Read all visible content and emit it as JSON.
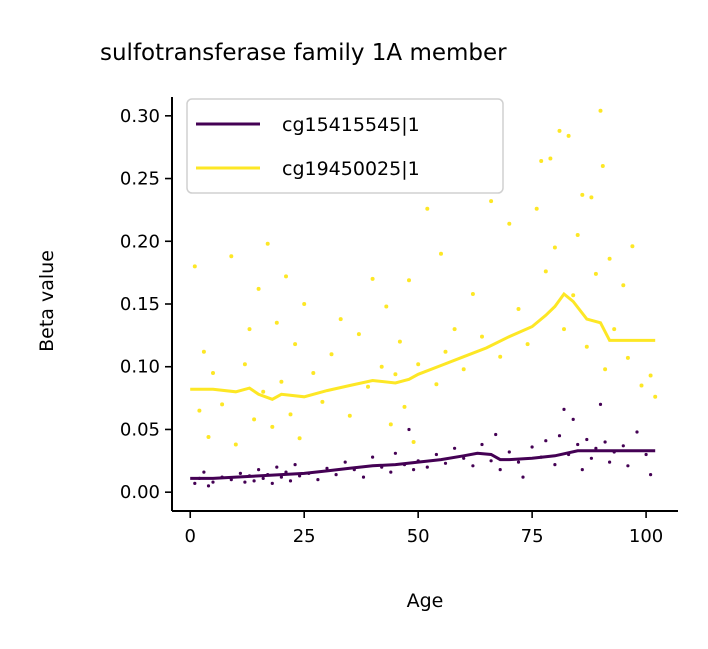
{
  "chart_data": {
    "type": "scatter",
    "title": "sulfotransferase family 1A member",
    "xlabel": "Age",
    "ylabel": "Beta value",
    "xlim": [
      -4,
      107
    ],
    "ylim": [
      -0.015,
      0.315
    ],
    "xticks": [
      0,
      25,
      50,
      75,
      100
    ],
    "yticks": [
      0.0,
      0.05,
      0.1,
      0.15,
      0.2,
      0.25,
      0.3
    ],
    "xtick_labels": [
      "0",
      "25",
      "50",
      "75",
      "100"
    ],
    "ytick_labels": [
      "0.00",
      "0.05",
      "0.10",
      "0.15",
      "0.20",
      "0.25",
      "0.30"
    ],
    "grid": false,
    "legend_position": "top-left",
    "series": [
      {
        "name": "cg15415545|1",
        "color": "#440154",
        "trend": [
          [
            0,
            0.011
          ],
          [
            5,
            0.011
          ],
          [
            10,
            0.012
          ],
          [
            15,
            0.013
          ],
          [
            20,
            0.014
          ],
          [
            25,
            0.015
          ],
          [
            30,
            0.017
          ],
          [
            35,
            0.019
          ],
          [
            40,
            0.021
          ],
          [
            45,
            0.022
          ],
          [
            50,
            0.024
          ],
          [
            55,
            0.026
          ],
          [
            60,
            0.029
          ],
          [
            63,
            0.031
          ],
          [
            66,
            0.03
          ],
          [
            68,
            0.026
          ],
          [
            70,
            0.026
          ],
          [
            75,
            0.027
          ],
          [
            80,
            0.029
          ],
          [
            85,
            0.033
          ],
          [
            90,
            0.033
          ],
          [
            95,
            0.033
          ],
          [
            102,
            0.033
          ]
        ],
        "points": [
          [
            1,
            0.007
          ],
          [
            2,
            0.011
          ],
          [
            3,
            0.016
          ],
          [
            4,
            0.005
          ],
          [
            5,
            0.008
          ],
          [
            7,
            0.012
          ],
          [
            9,
            0.01
          ],
          [
            11,
            0.015
          ],
          [
            12,
            0.008
          ],
          [
            13,
            0.013
          ],
          [
            14,
            0.009
          ],
          [
            15,
            0.018
          ],
          [
            16,
            0.011
          ],
          [
            17,
            0.014
          ],
          [
            18,
            0.007
          ],
          [
            19,
            0.02
          ],
          [
            20,
            0.012
          ],
          [
            21,
            0.016
          ],
          [
            22,
            0.009
          ],
          [
            23,
            0.022
          ],
          [
            24,
            0.013
          ],
          [
            26,
            0.015
          ],
          [
            28,
            0.01
          ],
          [
            30,
            0.019
          ],
          [
            32,
            0.014
          ],
          [
            34,
            0.024
          ],
          [
            36,
            0.018
          ],
          [
            38,
            0.012
          ],
          [
            40,
            0.028
          ],
          [
            42,
            0.02
          ],
          [
            44,
            0.016
          ],
          [
            45,
            0.031
          ],
          [
            47,
            0.022
          ],
          [
            48,
            0.05
          ],
          [
            49,
            0.018
          ],
          [
            50,
            0.025
          ],
          [
            52,
            0.02
          ],
          [
            54,
            0.03
          ],
          [
            56,
            0.023
          ],
          [
            58,
            0.035
          ],
          [
            60,
            0.027
          ],
          [
            62,
            0.021
          ],
          [
            64,
            0.038
          ],
          [
            66,
            0.025
          ],
          [
            67,
            0.046
          ],
          [
            68,
            0.018
          ],
          [
            70,
            0.032
          ],
          [
            72,
            0.024
          ],
          [
            73,
            0.012
          ],
          [
            75,
            0.036
          ],
          [
            77,
            0.028
          ],
          [
            78,
            0.041
          ],
          [
            80,
            0.022
          ],
          [
            81,
            0.045
          ],
          [
            82,
            0.066
          ],
          [
            83,
            0.03
          ],
          [
            84,
            0.058
          ],
          [
            85,
            0.038
          ],
          [
            86,
            0.018
          ],
          [
            87,
            0.042
          ],
          [
            88,
            0.027
          ],
          [
            89,
            0.035
          ],
          [
            90,
            0.07
          ],
          [
            91,
            0.04
          ],
          [
            92,
            0.024
          ],
          [
            93,
            0.032
          ],
          [
            95,
            0.037
          ],
          [
            96,
            0.021
          ],
          [
            98,
            0.048
          ],
          [
            100,
            0.03
          ],
          [
            101,
            0.014
          ]
        ]
      },
      {
        "name": "cg19450025|1",
        "color": "#fde725",
        "trend": [
          [
            0,
            0.082
          ],
          [
            5,
            0.082
          ],
          [
            10,
            0.08
          ],
          [
            13,
            0.083
          ],
          [
            15,
            0.078
          ],
          [
            18,
            0.074
          ],
          [
            20,
            0.078
          ],
          [
            25,
            0.076
          ],
          [
            30,
            0.081
          ],
          [
            35,
            0.085
          ],
          [
            40,
            0.089
          ],
          [
            45,
            0.087
          ],
          [
            48,
            0.09
          ],
          [
            50,
            0.094
          ],
          [
            55,
            0.101
          ],
          [
            60,
            0.108
          ],
          [
            65,
            0.115
          ],
          [
            70,
            0.124
          ],
          [
            75,
            0.132
          ],
          [
            78,
            0.141
          ],
          [
            80,
            0.148
          ],
          [
            82,
            0.158
          ],
          [
            84,
            0.152
          ],
          [
            87,
            0.138
          ],
          [
            90,
            0.135
          ],
          [
            92,
            0.121
          ],
          [
            95,
            0.121
          ],
          [
            102,
            0.121
          ]
        ],
        "points": [
          [
            1,
            0.18
          ],
          [
            2,
            0.065
          ],
          [
            3,
            0.112
          ],
          [
            4,
            0.044
          ],
          [
            5,
            0.095
          ],
          [
            7,
            0.07
          ],
          [
            9,
            0.188
          ],
          [
            10,
            0.038
          ],
          [
            12,
            0.102
          ],
          [
            13,
            0.13
          ],
          [
            14,
            0.058
          ],
          [
            15,
            0.162
          ],
          [
            16,
            0.08
          ],
          [
            17,
            0.198
          ],
          [
            18,
            0.052
          ],
          [
            19,
            0.135
          ],
          [
            20,
            0.088
          ],
          [
            21,
            0.172
          ],
          [
            22,
            0.062
          ],
          [
            23,
            0.118
          ],
          [
            24,
            0.043
          ],
          [
            25,
            0.15
          ],
          [
            27,
            0.095
          ],
          [
            29,
            0.072
          ],
          [
            31,
            0.11
          ],
          [
            33,
            0.138
          ],
          [
            35,
            0.061
          ],
          [
            37,
            0.126
          ],
          [
            39,
            0.084
          ],
          [
            40,
            0.17
          ],
          [
            42,
            0.1
          ],
          [
            43,
            0.148
          ],
          [
            44,
            0.054
          ],
          [
            45,
            0.094
          ],
          [
            46,
            0.12
          ],
          [
            47,
            0.068
          ],
          [
            48,
            0.169
          ],
          [
            49,
            0.04
          ],
          [
            50,
            0.102
          ],
          [
            52,
            0.226
          ],
          [
            54,
            0.086
          ],
          [
            55,
            0.19
          ],
          [
            56,
            0.112
          ],
          [
            58,
            0.13
          ],
          [
            60,
            0.098
          ],
          [
            62,
            0.158
          ],
          [
            64,
            0.124
          ],
          [
            66,
            0.232
          ],
          [
            68,
            0.108
          ],
          [
            70,
            0.214
          ],
          [
            72,
            0.146
          ],
          [
            74,
            0.118
          ],
          [
            76,
            0.226
          ],
          [
            77,
            0.264
          ],
          [
            78,
            0.176
          ],
          [
            79,
            0.266
          ],
          [
            80,
            0.195
          ],
          [
            81,
            0.288
          ],
          [
            82,
            0.13
          ],
          [
            83,
            0.284
          ],
          [
            84,
            0.157
          ],
          [
            85,
            0.205
          ],
          [
            86,
            0.237
          ],
          [
            87,
            0.116
          ],
          [
            88,
            0.235
          ],
          [
            89,
            0.174
          ],
          [
            90,
            0.304
          ],
          [
            90.5,
            0.26
          ],
          [
            91,
            0.098
          ],
          [
            92,
            0.186
          ],
          [
            93,
            0.13
          ],
          [
            95,
            0.165
          ],
          [
            96,
            0.107
          ],
          [
            97,
            0.196
          ],
          [
            99,
            0.085
          ],
          [
            101,
            0.093
          ],
          [
            102,
            0.076
          ]
        ]
      }
    ]
  }
}
